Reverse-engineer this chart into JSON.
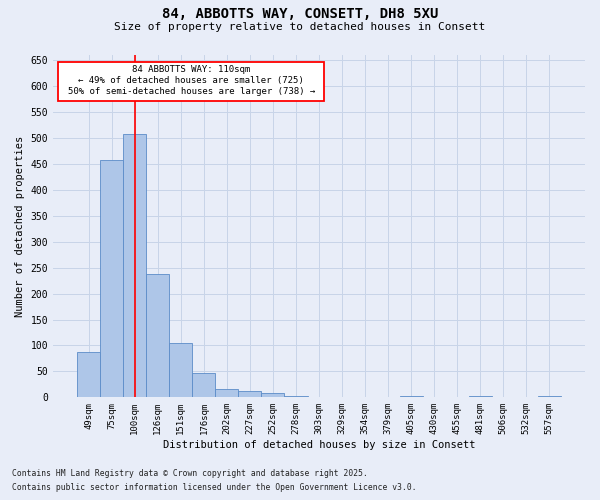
{
  "title_line1": "84, ABBOTTS WAY, CONSETT, DH8 5XU",
  "title_line2": "Size of property relative to detached houses in Consett",
  "xlabel": "Distribution of detached houses by size in Consett",
  "ylabel": "Number of detached properties",
  "footnote_line1": "Contains HM Land Registry data © Crown copyright and database right 2025.",
  "footnote_line2": "Contains public sector information licensed under the Open Government Licence v3.0.",
  "categories": [
    "49sqm",
    "75sqm",
    "100sqm",
    "126sqm",
    "151sqm",
    "176sqm",
    "202sqm",
    "227sqm",
    "252sqm",
    "278sqm",
    "303sqm",
    "329sqm",
    "354sqm",
    "379sqm",
    "405sqm",
    "430sqm",
    "455sqm",
    "481sqm",
    "506sqm",
    "532sqm",
    "557sqm"
  ],
  "values": [
    88,
    458,
    507,
    238,
    104,
    47,
    17,
    13,
    8,
    3,
    0,
    0,
    0,
    0,
    3,
    0,
    0,
    3,
    0,
    0,
    3
  ],
  "bar_color": "#aec6e8",
  "bar_edge_color": "#5b8cc8",
  "grid_color": "#c8d4e8",
  "background_color": "#e8edf8",
  "red_line_x": 2,
  "annotation_text_line1": "84 ABBOTTS WAY: 110sqm",
  "annotation_text_line2": "← 49% of detached houses are smaller (725)",
  "annotation_text_line3": "50% of semi-detached houses are larger (738) →",
  "ylim": [
    0,
    660
  ],
  "yticks": [
    0,
    50,
    100,
    150,
    200,
    250,
    300,
    350,
    400,
    450,
    500,
    550,
    600,
    650
  ]
}
